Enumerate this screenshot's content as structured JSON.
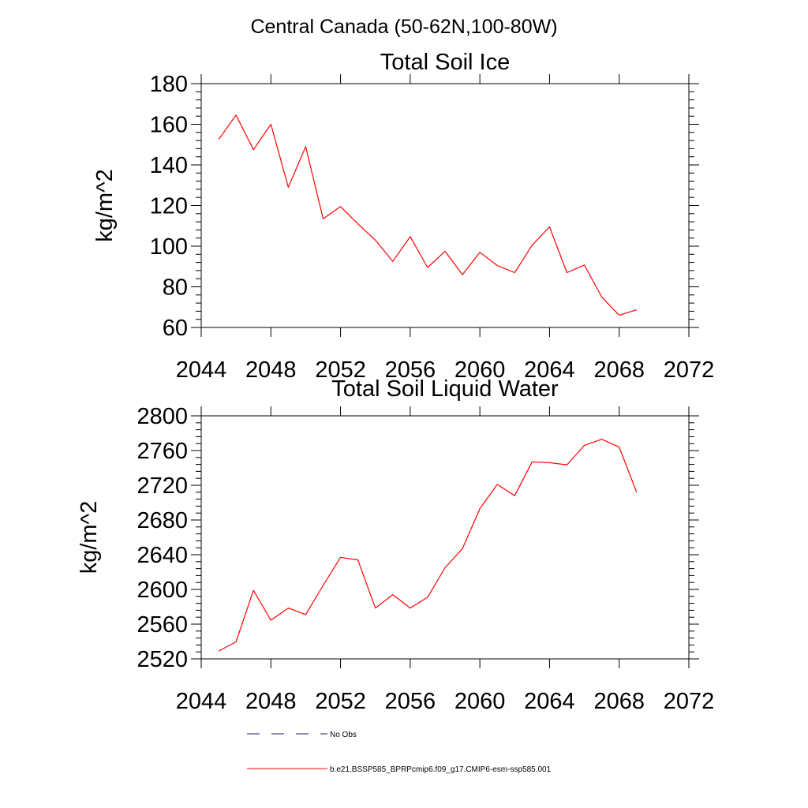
{
  "figure": {
    "title": "Central Canada (50-62N,100-80W)"
  },
  "chart_data": [
    {
      "type": "line",
      "title": "Total Soil Ice",
      "xlabel": "",
      "ylabel": "kg/m^2",
      "xlim": [
        2044,
        2072
      ],
      "ylim": [
        60,
        180
      ],
      "xticks": [
        2044,
        2048,
        2052,
        2056,
        2060,
        2064,
        2068,
        2072
      ],
      "yticks": [
        60,
        80,
        100,
        120,
        140,
        160,
        180
      ],
      "x": [
        2045,
        2046,
        2047,
        2048,
        2049,
        2050,
        2051,
        2052,
        2053,
        2054,
        2055,
        2056,
        2057,
        2058,
        2059,
        2060,
        2061,
        2062,
        2063,
        2064,
        2065,
        2066,
        2067,
        2068,
        2069
      ],
      "series": [
        {
          "name": "b.e21.BSSP585_BPRPcmip6.f09_g17.CMIP6-esm-ssp585.001",
          "color": "#ff0000",
          "values": [
            152.5,
            164.5,
            147.5,
            160,
            129,
            149,
            113.5,
            119.5,
            111,
            103,
            92.5,
            104.7,
            89.5,
            97.5,
            86,
            97,
            90.5,
            87,
            100.5,
            109.5,
            87,
            90.7,
            75,
            66,
            68.7
          ]
        }
      ]
    },
    {
      "type": "line",
      "title": "Total Soil Liquid Water",
      "xlabel": "",
      "ylabel": "kg/m^2",
      "xlim": [
        2044,
        2072
      ],
      "ylim": [
        2520,
        2800
      ],
      "xticks": [
        2044,
        2048,
        2052,
        2056,
        2060,
        2064,
        2068,
        2072
      ],
      "yticks": [
        2520,
        2560,
        2600,
        2640,
        2680,
        2720,
        2760,
        2800
      ],
      "x": [
        2045,
        2046,
        2047,
        2048,
        2049,
        2050,
        2051,
        2052,
        2053,
        2054,
        2055,
        2056,
        2057,
        2058,
        2059,
        2060,
        2061,
        2062,
        2063,
        2064,
        2065,
        2066,
        2067,
        2068,
        2069
      ],
      "series": [
        {
          "name": "b.e21.BSSP585_BPRPcmip6.f09_g17.CMIP6-esm-ssp585.001",
          "color": "#ff0000",
          "values": [
            2529,
            2539.5,
            2599,
            2564.5,
            2578.5,
            2571,
            2604.5,
            2637,
            2634,
            2578.5,
            2594,
            2578.5,
            2591,
            2625,
            2647,
            2693,
            2721,
            2708,
            2747,
            2746,
            2743.5,
            2766,
            2773,
            2764,
            2712
          ]
        }
      ]
    }
  ],
  "legend": {
    "placement": "bottom-center",
    "entries": [
      {
        "label": "No Obs",
        "style": "dashed",
        "color": "#1e1e64"
      },
      {
        "label": "b.e21.BSSP585_BPRPcmip6.f09_g17.CMIP6-esm-ssp585.001",
        "style": "solid",
        "color": "#ff0000"
      }
    ]
  }
}
